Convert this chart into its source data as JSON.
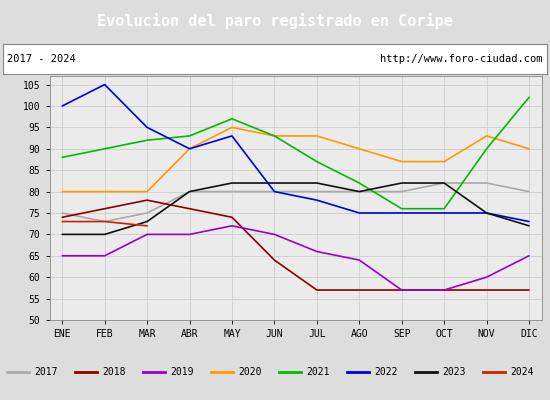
{
  "title": "Evolucion del paro registrado en Coripe",
  "title_bg": "#5b9bd5",
  "title_color": "white",
  "subtitle_left": "2017 - 2024",
  "subtitle_right": "http://www.foro-ciudad.com",
  "months": [
    "ENE",
    "FEB",
    "MAR",
    "ABR",
    "MAY",
    "JUN",
    "JUL",
    "AGO",
    "SEP",
    "OCT",
    "NOV",
    "DIC"
  ],
  "ylim": [
    50,
    107
  ],
  "yticks": [
    50,
    55,
    60,
    65,
    70,
    75,
    80,
    85,
    90,
    95,
    100,
    105
  ],
  "series": {
    "2017": {
      "color": "#aaaaaa",
      "values": [
        75,
        73,
        75,
        80,
        80,
        80,
        80,
        80,
        80,
        82,
        82,
        80
      ]
    },
    "2018": {
      "color": "#8b0000",
      "values": [
        74,
        76,
        78,
        76,
        74,
        64,
        57,
        57,
        57,
        57,
        57,
        57
      ]
    },
    "2019": {
      "color": "#9900cc",
      "values": [
        65,
        65,
        70,
        70,
        72,
        70,
        66,
        64,
        57,
        57,
        60,
        65
      ]
    },
    "2020": {
      "color": "#ff9900",
      "values": [
        80,
        80,
        80,
        90,
        95,
        93,
        93,
        90,
        87,
        87,
        93,
        90
      ]
    },
    "2021": {
      "color": "#00bb00",
      "values": [
        88,
        90,
        92,
        93,
        97,
        93,
        87,
        82,
        76,
        76,
        90,
        102
      ]
    },
    "2022": {
      "color": "#0000dd",
      "values": [
        100,
        105,
        95,
        90,
        93,
        80,
        78,
        75,
        75,
        75,
        75,
        73
      ]
    },
    "2023": {
      "color": "#111111",
      "values": [
        70,
        70,
        73,
        80,
        82,
        82,
        82,
        80,
        82,
        82,
        75,
        72
      ]
    },
    "2024": {
      "color": "#cc2200",
      "values": [
        73,
        73,
        72,
        null,
        null,
        null,
        null,
        null,
        null,
        null,
        null,
        null
      ]
    }
  },
  "grid_color": "#cccccc",
  "plot_bg": "#ebebeb",
  "fig_bg": "#dddddd",
  "outer_bg": "#d0d0d0"
}
